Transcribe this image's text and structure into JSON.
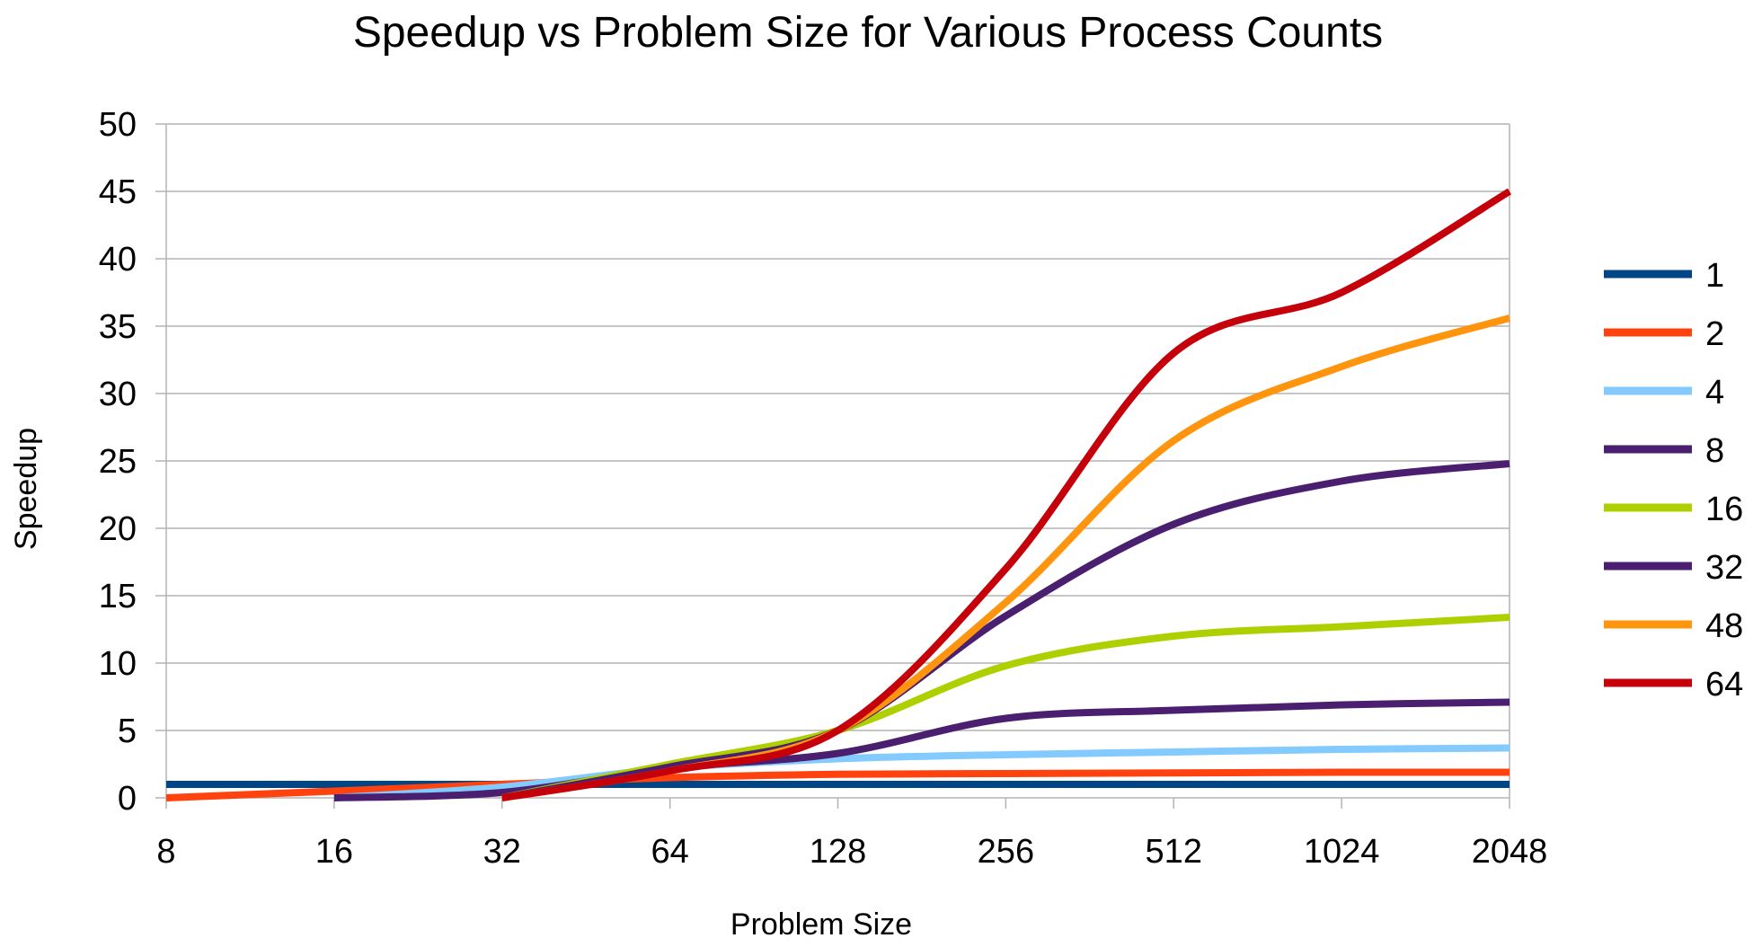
{
  "chart_data": {
    "type": "line",
    "title": "Speedup vs Problem Size for Various Process Counts",
    "xlabel": "Problem Size",
    "ylabel": "Speedup",
    "categories": [
      "8",
      "16",
      "32",
      "64",
      "128",
      "256",
      "512",
      "1024",
      "2048"
    ],
    "ylim": [
      0,
      50
    ],
    "yticks": [
      0,
      5,
      10,
      15,
      20,
      25,
      30,
      35,
      40,
      45,
      50
    ],
    "grid": true,
    "legend_position": "right",
    "smooth": true,
    "series": [
      {
        "name": "1",
        "color": "#004586",
        "values": [
          1.0,
          1.0,
          1.0,
          1.0,
          1.0,
          1.0,
          1.0,
          1.0,
          1.0
        ]
      },
      {
        "name": "2",
        "color": "#ff420e",
        "values": [
          0.0,
          0.5,
          1.0,
          1.5,
          1.75,
          1.8,
          1.85,
          1.9,
          1.9
        ]
      },
      {
        "name": "4",
        "color": "#83caff",
        "values": [
          null,
          0.0,
          0.8,
          2.2,
          2.9,
          3.2,
          3.4,
          3.6,
          3.7
        ]
      },
      {
        "name": "8",
        "color": "#4b1f6f",
        "values": [
          null,
          0.0,
          0.4,
          2.2,
          3.3,
          5.9,
          6.5,
          6.9,
          7.1
        ]
      },
      {
        "name": "16",
        "color": "#aecf00",
        "values": [
          null,
          null,
          0.0,
          2.5,
          5.0,
          9.8,
          12.0,
          12.7,
          13.4
        ]
      },
      {
        "name": "32",
        "color": "#4b1f6f",
        "values": [
          null,
          null,
          0.0,
          2.3,
          5.0,
          13.5,
          20.3,
          23.5,
          24.8
        ]
      },
      {
        "name": "48",
        "color": "#ff950e",
        "values": [
          null,
          null,
          0.0,
          2.0,
          5.0,
          14.5,
          26.5,
          32.0,
          35.6
        ]
      },
      {
        "name": "64",
        "color": "#c5000b",
        "values": [
          null,
          null,
          0.0,
          2.0,
          5.0,
          17.0,
          33.0,
          37.5,
          45.0
        ]
      }
    ]
  }
}
